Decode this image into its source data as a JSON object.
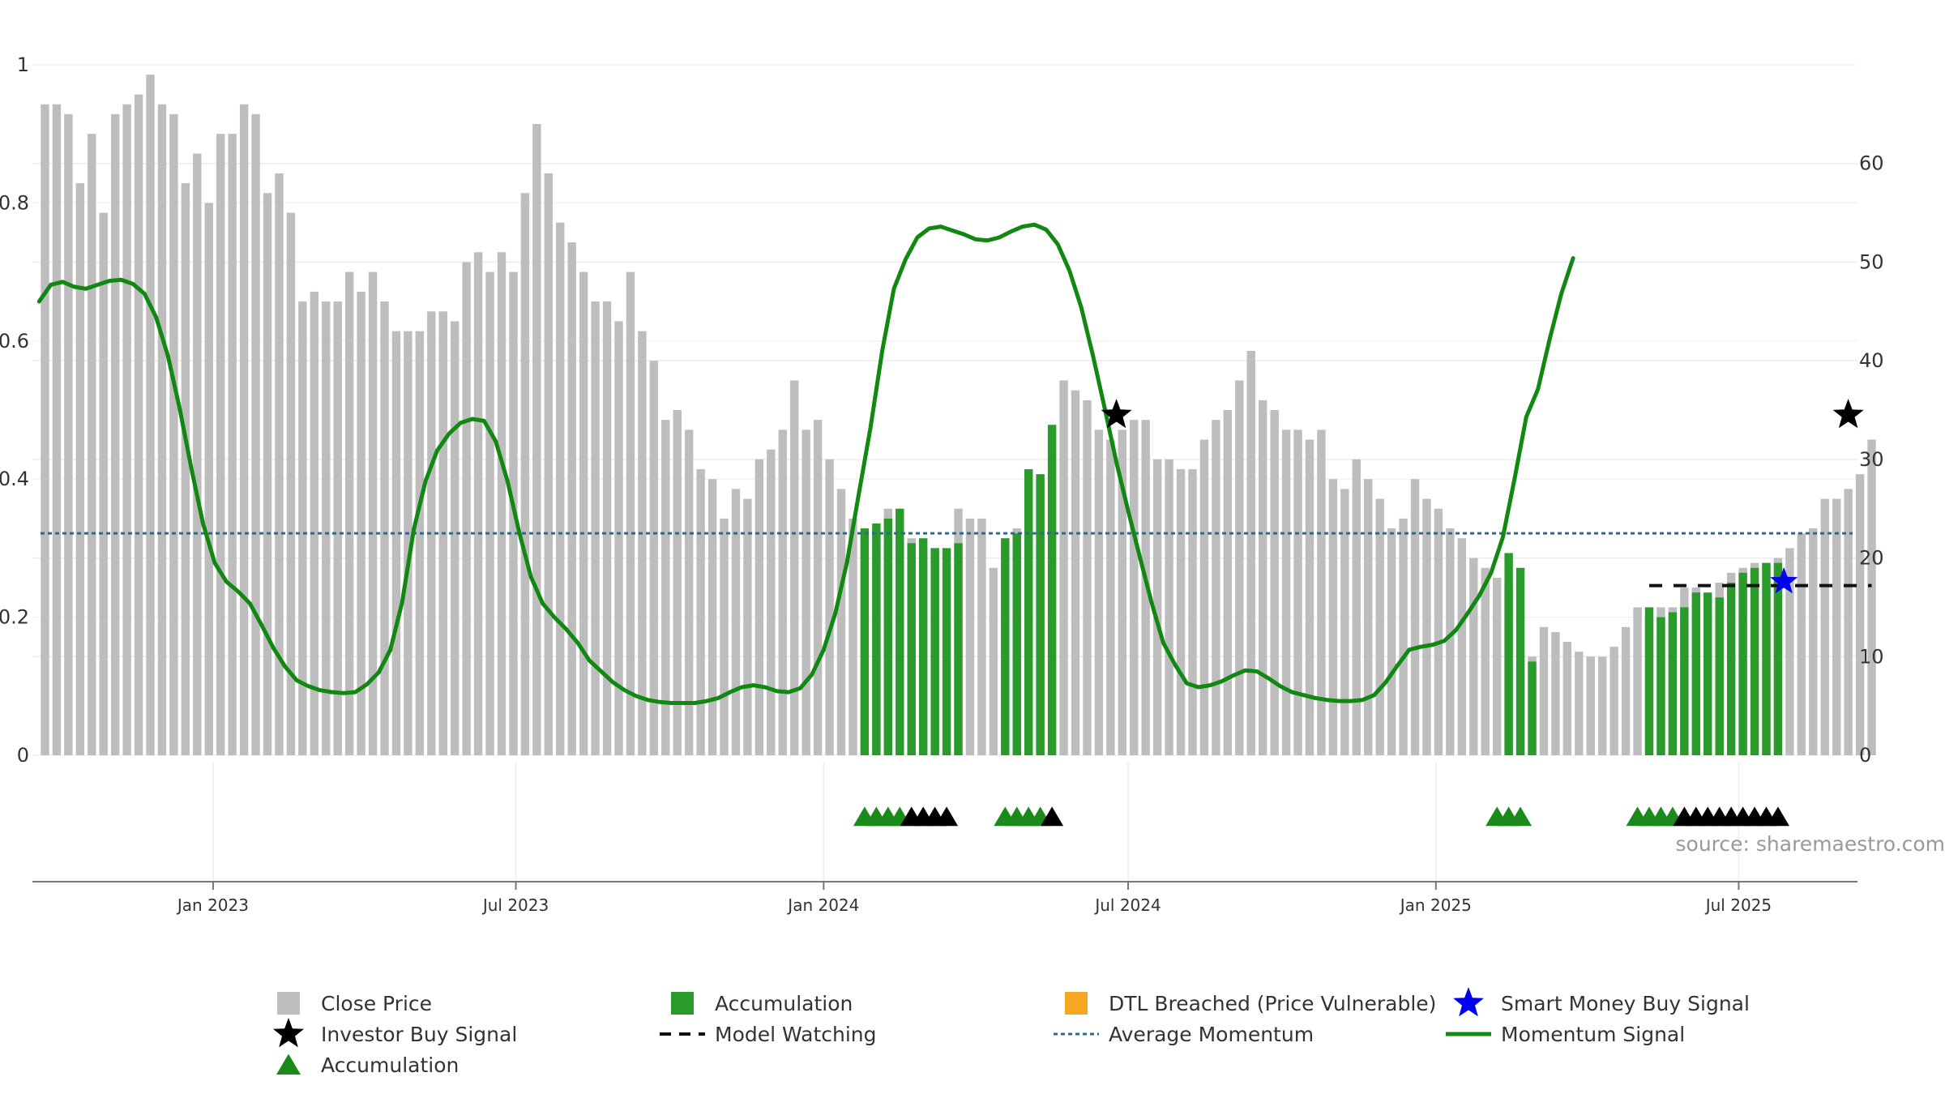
{
  "chart_data": {
    "type": "bar",
    "source": "source: sharemaestro.com",
    "left_axis": {
      "ticks": [
        "0",
        "0.2",
        "0.4",
        "0.6",
        "0.8",
        "1"
      ],
      "values": [
        0,
        0.2,
        0.4,
        0.6,
        0.8,
        1
      ]
    },
    "right_axis": {
      "ticks": [
        "0",
        "10",
        "20",
        "30",
        "40",
        "50",
        "60"
      ],
      "values": [
        0,
        10,
        20,
        30,
        40,
        50,
        60
      ]
    },
    "x_ticks": [
      "Jan 2023",
      "Jul 2023",
      "Jan 2024",
      "Jul 2024",
      "Jan 2025",
      "Jul 2025"
    ],
    "x_range": [
      "2022-09-15",
      "2025-09-10"
    ],
    "ylim_right": [
      0,
      70
    ],
    "grid": true,
    "legend_position": "bottom",
    "colors": {
      "close_price": "#bdbdbd",
      "accumulation_bar": "#2a9a2a",
      "dtl_breached": "#f5a623",
      "smart_money": "#0000ee",
      "investor_buy": "#000000",
      "accumulation_marker": "#1a8a1a",
      "model_watching": "#111111",
      "average_momentum": "#2b6b8f",
      "momentum_signal": "#118811"
    },
    "weeks_start": "2022-09-19",
    "close_price": [
      66,
      66,
      65,
      58,
      63,
      55,
      65,
      66,
      67,
      69,
      66,
      65,
      58,
      61,
      56,
      63,
      63,
      66,
      65,
      57,
      59,
      55,
      46,
      47,
      46,
      46,
      49,
      47,
      49,
      46,
      43,
      43,
      43,
      45,
      45,
      44,
      50,
      51,
      49,
      51,
      49,
      57,
      64,
      59,
      54,
      52,
      49,
      46,
      46,
      44,
      49,
      43,
      40,
      34,
      35,
      33,
      29,
      28,
      24,
      27,
      26,
      30,
      31,
      33,
      38,
      33,
      34,
      30,
      27,
      24,
      22,
      23,
      25,
      21,
      22,
      21,
      21,
      21,
      25,
      24,
      24,
      19,
      22,
      23,
      29,
      28,
      33,
      38,
      37,
      36,
      33,
      32,
      33,
      34,
      34,
      30,
      30,
      29,
      29,
      32,
      34,
      35,
      38,
      41,
      36,
      35,
      33,
      33,
      32,
      33,
      28,
      27,
      30,
      28,
      26,
      23,
      24,
      28,
      26,
      25,
      23,
      22,
      20,
      19,
      18,
      17,
      9,
      10,
      13,
      12.5,
      11.5,
      10.5,
      10,
      10,
      11,
      13,
      15,
      14,
      15,
      15,
      17,
      17,
      16,
      17.5,
      18.5,
      19,
      19.5,
      19.5,
      20,
      21,
      22.5,
      23,
      26,
      26,
      27,
      28.5,
      32
    ],
    "accumulation_bars": [
      {
        "start": 70,
        "values": [
          23,
          23.5,
          24,
          25,
          21.5,
          22,
          21,
          21,
          21.5
        ]
      },
      {
        "start": 82,
        "values": [
          22,
          22.5,
          29,
          28.5,
          33.5
        ]
      },
      {
        "start": 125,
        "values": [
          20.5,
          19
        ]
      },
      {
        "start": 127,
        "values": [
          9.5
        ]
      },
      {
        "start": 137,
        "values": [
          15,
          14,
          14.5,
          15,
          16.5,
          16.5,
          16,
          17.5,
          18.5,
          19,
          19.5,
          19.5
        ]
      }
    ],
    "momentum_signal": [
      46,
      47.7,
      48,
      47.5,
      47.3,
      47.7,
      48.1,
      48.2,
      47.8,
      46.8,
      44.4,
      40.5,
      35.2,
      29.1,
      23.5,
      19.5,
      17.6,
      16.6,
      15.4,
      13.2,
      10.9,
      9,
      7.6,
      7,
      6.6,
      6.4,
      6.3,
      6.4,
      7.2,
      8.4,
      10.7,
      15.5,
      22.9,
      27.8,
      30.9,
      32.6,
      33.7,
      34.1,
      33.9,
      31.8,
      27.8,
      22.6,
      18.1,
      15.4,
      14,
      12.8,
      11.4,
      9.6,
      8.5,
      7.4,
      6.6,
      6,
      5.6,
      5.4,
      5.3,
      5.3,
      5.3,
      5.5,
      5.8,
      6.4,
      6.9,
      7.1,
      6.9,
      6.5,
      6.4,
      6.8,
      8.2,
      10.7,
      14.4,
      19.6,
      26.5,
      33.2,
      41,
      47.3,
      50.3,
      52.5,
      53.4,
      53.6,
      53.2,
      52.8,
      52.3,
      52.2,
      52.5,
      53.1,
      53.6,
      53.8,
      53.3,
      51.8,
      49.1,
      45.4,
      40.5,
      35.2,
      29.7,
      24.8,
      20.1,
      15.5,
      11.4,
      9.2,
      7.3,
      6.9,
      7.1,
      7.5,
      8.1,
      8.6,
      8.5,
      7.8,
      7,
      6.4,
      6.1,
      5.8,
      5.6,
      5.5,
      5.5,
      5.6,
      6.1,
      7.4,
      9.1,
      10.7,
      11,
      11.2,
      11.6,
      12.7,
      14.4,
      16.2,
      18.5,
      22.1,
      28,
      34.3,
      37.1,
      42.2,
      46.8,
      50.4
    ],
    "momentum_offset_weeks": 0,
    "average_momentum": 22.5,
    "investor_buy_signals": [
      {
        "week": 92,
        "value": 34.5
      },
      {
        "week": 154.5,
        "value": 34.5
      }
    ],
    "smart_money_buy_signals": [
      {
        "week": 149,
        "value": 17.6
      }
    ],
    "model_watching": {
      "start": 137.5,
      "end": 156.5,
      "value": 17.2
    },
    "accumulation_markers": {
      "green": [
        70.5,
        71.5,
        72.5,
        73.5,
        82.5,
        83.5,
        84.5,
        85.5,
        124.5,
        125.5,
        126.5,
        136.5,
        137.5,
        138.5,
        139.5
      ],
      "black": [
        74.5,
        75.5,
        76.5,
        77.5,
        86.5,
        140.5,
        141.5,
        142.5,
        143.5,
        144.5,
        145.5,
        146.5,
        147.5,
        148.5
      ]
    },
    "legend": [
      {
        "label": "Close Price",
        "icon": "square-grey"
      },
      {
        "label": "Accumulation",
        "icon": "square-green"
      },
      {
        "label": "DTL Breached (Price Vulnerable)",
        "icon": "square-orange"
      },
      {
        "label": "Smart Money Buy Signal",
        "icon": "star-blue"
      },
      {
        "label": "Investor Buy Signal",
        "icon": "star-black"
      },
      {
        "label": "Model Watching",
        "icon": "dash-black"
      },
      {
        "label": "Average Momentum",
        "icon": "dotted-blue"
      },
      {
        "label": "Momentum Signal",
        "icon": "line-green"
      },
      {
        "label": "Accumulation",
        "icon": "triangle-green"
      }
    ]
  }
}
